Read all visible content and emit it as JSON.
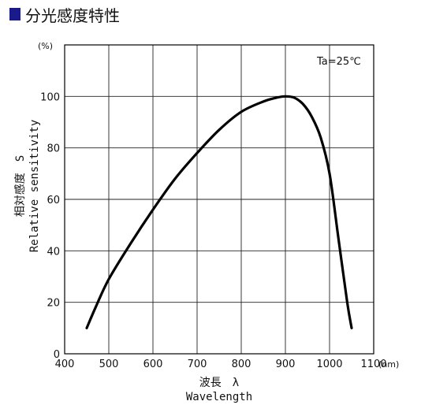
{
  "page": {
    "title": "分光感度特性",
    "accent_color": "#1a1a8c"
  },
  "chart_data": {
    "type": "line",
    "xlabel_jp": "波長　λ",
    "xlabel_en": "Wavelength",
    "ylabel_jp": "相対感度　S",
    "ylabel_en": "Relative sensitivity",
    "x_unit": "(nm)",
    "y_unit": "(%)",
    "annotation": "Ta=25℃",
    "xlim": [
      400,
      1100
    ],
    "ylim": [
      0,
      120
    ],
    "x_ticks": [
      400,
      500,
      600,
      700,
      800,
      900,
      1000,
      1100
    ],
    "y_ticks": [
      0,
      20,
      40,
      60,
      80,
      100
    ],
    "grid": true,
    "series": [
      {
        "x": [
          450,
          470,
          500,
          550,
          600,
          650,
          700,
          750,
          800,
          850,
          880,
          900,
          920,
          940,
          960,
          980,
          1000,
          1020,
          1040,
          1050
        ],
        "y": [
          10,
          18,
          29,
          43,
          56,
          68,
          78,
          87,
          94,
          98,
          99.5,
          100,
          99.5,
          97,
          92,
          84,
          70,
          45,
          20,
          10
        ]
      }
    ]
  }
}
